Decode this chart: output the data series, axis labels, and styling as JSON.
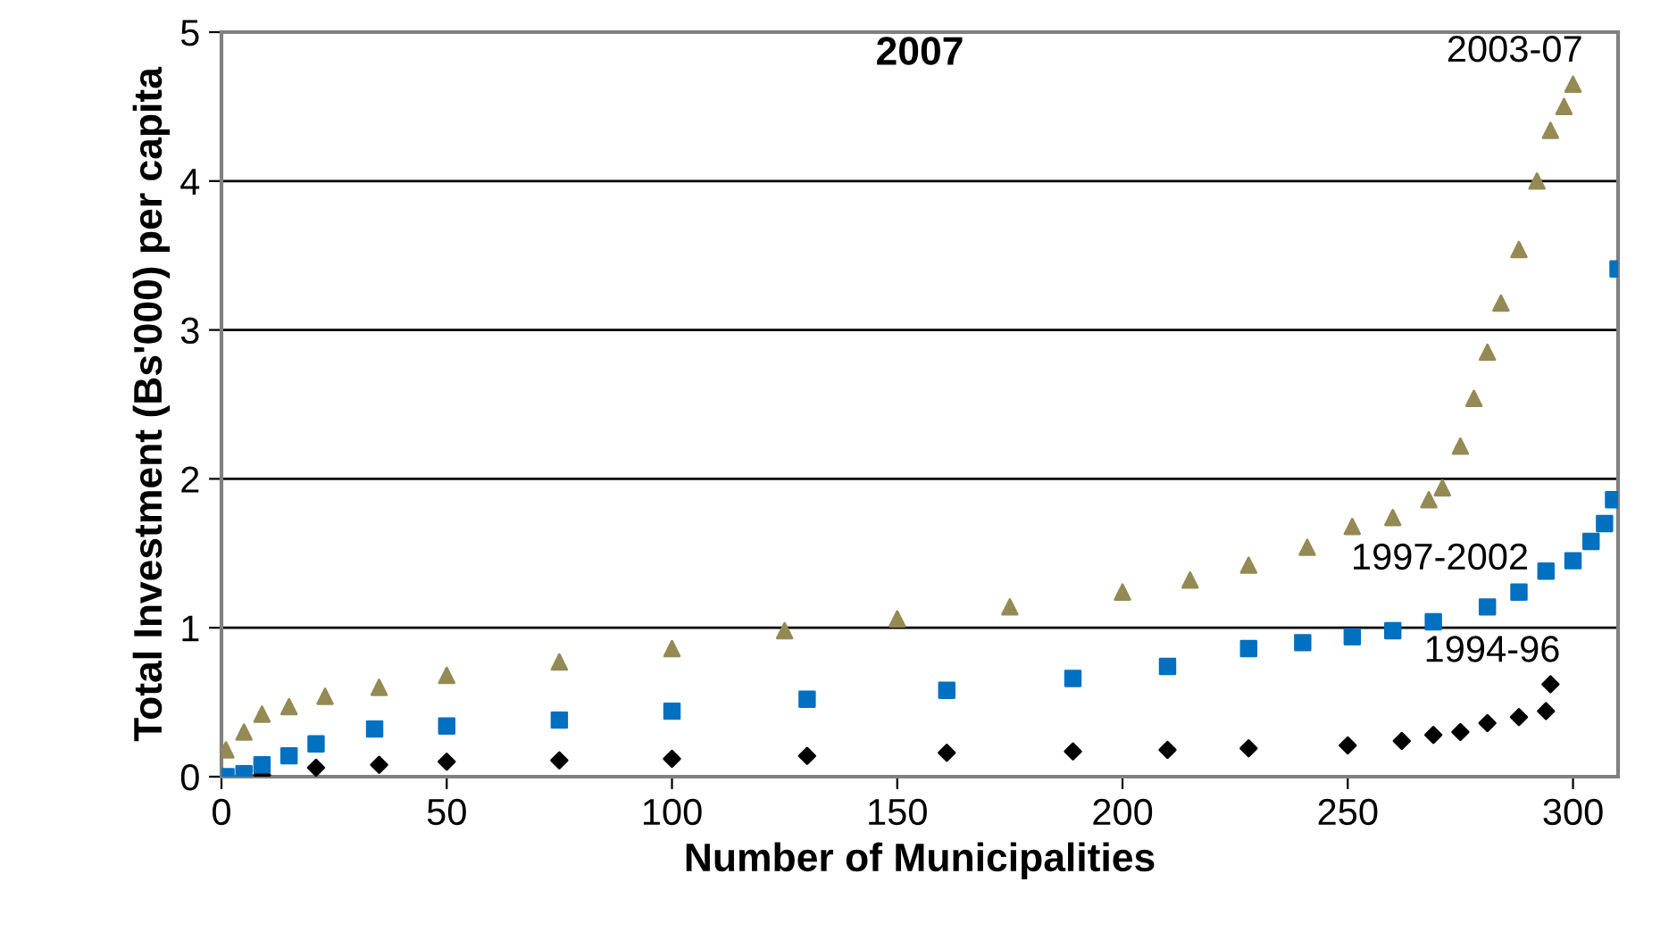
{
  "chart_data": {
    "type": "scatter",
    "title": "2007",
    "xlabel": "Number of Municipalities",
    "ylabel": "Total Investment (Bs'000) per capita",
    "xlim": [
      0,
      310
    ],
    "ylim": [
      0,
      5
    ],
    "xticks": [
      0,
      50,
      100,
      150,
      200,
      250,
      300
    ],
    "yticks": [
      0,
      1,
      2,
      3,
      4,
      5
    ],
    "grid": "y",
    "series": [
      {
        "color": "#000000",
        "marker": "diamond",
        "x": [
          9,
          21,
          35,
          50,
          75,
          100,
          130,
          161,
          189,
          210,
          228,
          250,
          262,
          269,
          275,
          281,
          288,
          294,
          295
        ],
        "values": [
          0.01,
          0.06,
          0.08,
          0.1,
          0.11,
          0.12,
          0.14,
          0.16,
          0.17,
          0.18,
          0.19,
          0.21,
          0.24,
          0.28,
          0.3,
          0.36,
          0.4,
          0.44,
          0.62
        ]
      },
      {
        "color": "#0070c0",
        "marker": "square",
        "x": [
          1,
          5,
          9,
          15,
          21,
          34,
          50,
          75,
          100,
          130,
          161,
          189,
          210,
          228,
          240,
          251,
          260,
          269,
          281,
          288,
          294,
          300,
          304,
          307,
          309,
          310
        ],
        "values": [
          0.0,
          0.02,
          0.08,
          0.14,
          0.22,
          0.32,
          0.34,
          0.38,
          0.44,
          0.52,
          0.58,
          0.66,
          0.74,
          0.86,
          0.9,
          0.94,
          0.98,
          1.04,
          1.14,
          1.24,
          1.38,
          1.45,
          1.58,
          1.7,
          1.86,
          3.41
        ]
      },
      {
        "color": "#948a54",
        "marker": "triangle",
        "x": [
          1,
          5,
          9,
          15,
          23,
          35,
          50,
          75,
          100,
          125,
          150,
          175,
          200,
          215,
          228,
          241,
          251,
          260,
          268,
          271,
          275,
          278,
          281,
          284,
          288,
          292,
          295,
          298,
          300
        ],
        "values": [
          0.18,
          0.3,
          0.42,
          0.47,
          0.54,
          0.6,
          0.68,
          0.77,
          0.86,
          0.98,
          1.06,
          1.14,
          1.24,
          1.32,
          1.42,
          1.54,
          1.68,
          1.74,
          1.86,
          1.94,
          2.22,
          2.54,
          2.85,
          3.18,
          3.54,
          4.0,
          4.34,
          4.5,
          4.65
        ]
      }
    ],
    "annotations": [
      {
        "text": "2003-07",
        "x": 300,
        "y": 4.65
      },
      {
        "text": "1997-2002",
        "x": 288,
        "y": 1.24
      },
      {
        "text": "1994-96",
        "x": 295,
        "y": 0.62
      }
    ]
  }
}
